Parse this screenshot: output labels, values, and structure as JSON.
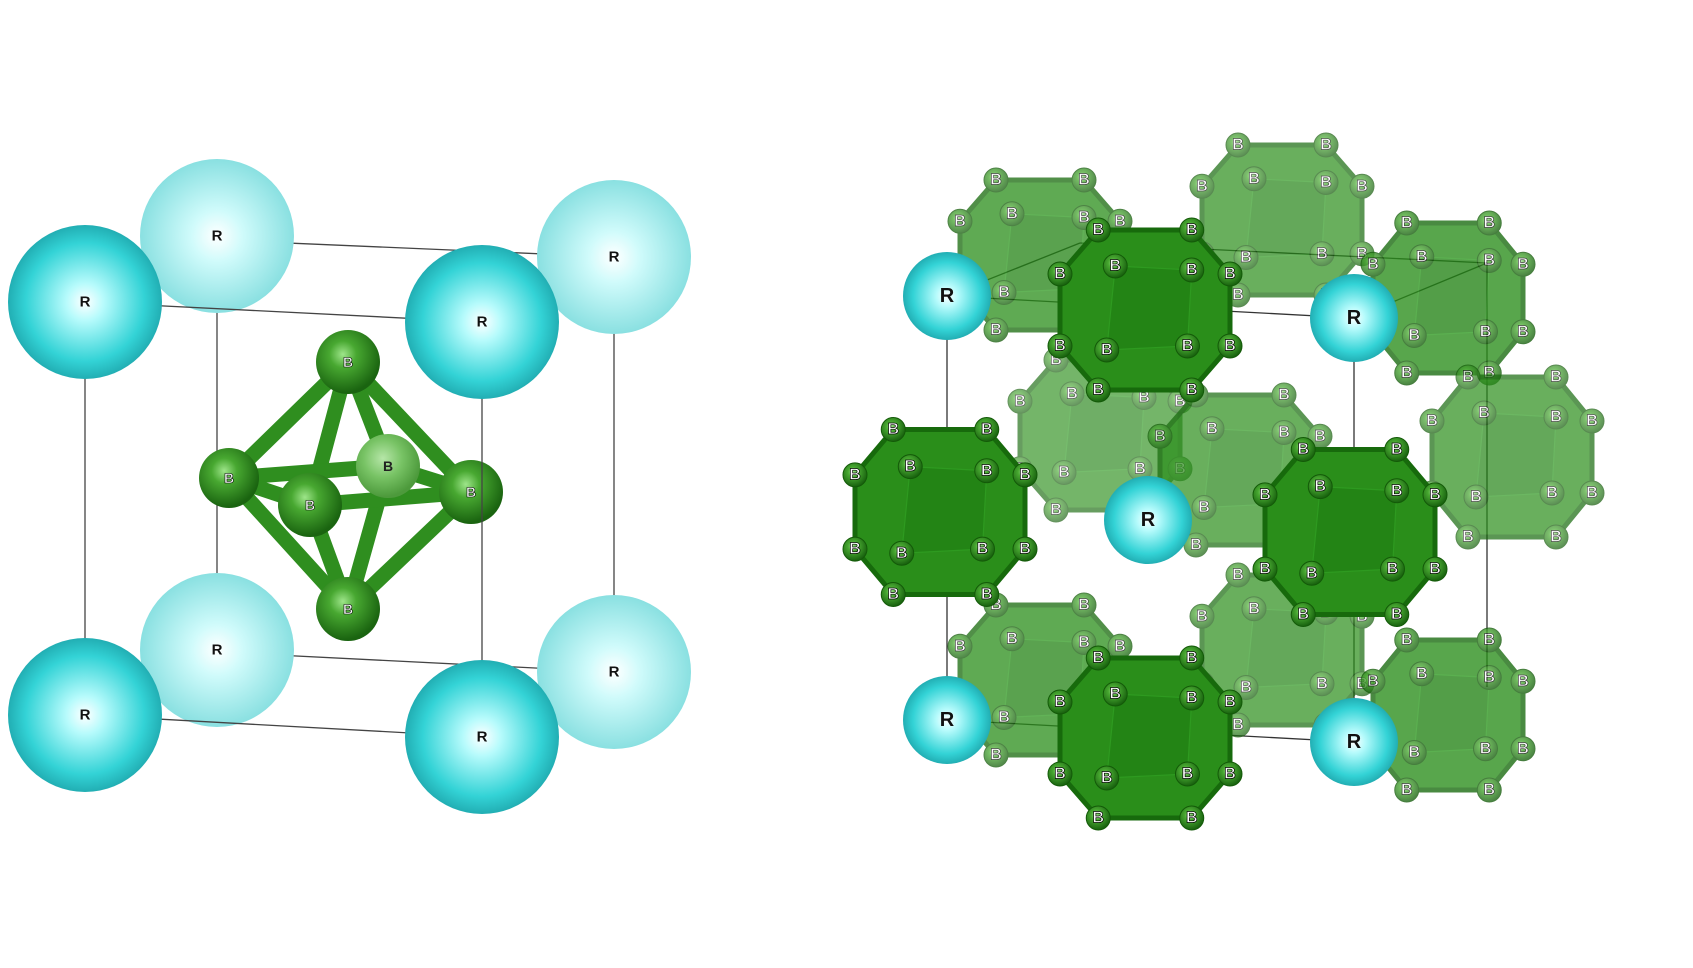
{
  "figure": {
    "left_panel": {
      "kind": "RB6 unit cell (ball-and-stick)",
      "rare_earth_label": "R",
      "boron_label": "B"
    },
    "right_panel": {
      "kind": "RB12 crystal structure (B12 cuboctahedra)",
      "rare_earth_label": "R",
      "boron_label": "B"
    }
  },
  "colors": {
    "rare_earth": "#35d6d8",
    "rare_earth_light": "#aef6f7",
    "boron": "#2e8f1c",
    "boron_dark": "#1d6a10",
    "polyhedron": "#2a8e1a",
    "cell_edge": "#444444"
  }
}
